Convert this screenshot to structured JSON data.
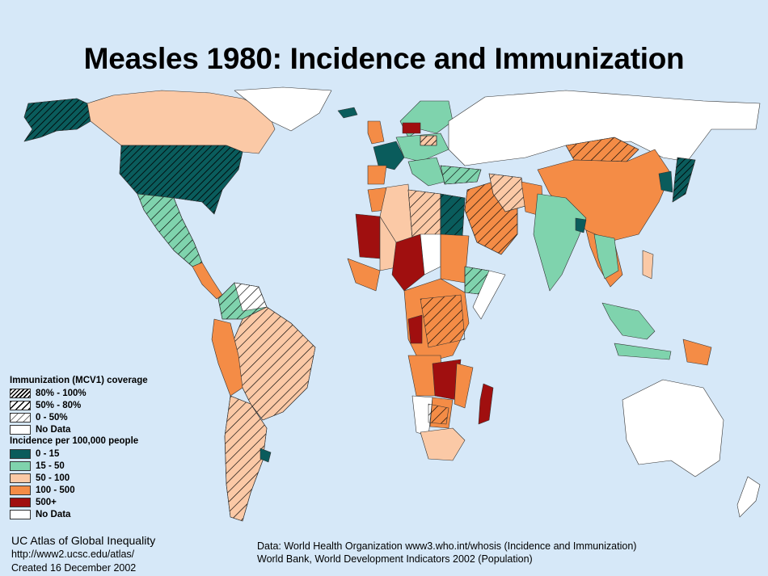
{
  "title": "Measles 1980: Incidence and Immunization",
  "colors": {
    "ocean": "#d6e8f8",
    "inc_0_15": "#0a5c5c",
    "inc_15_50": "#7fd3ad",
    "inc_50_100": "#fbc9a6",
    "inc_100_500": "#f48c46",
    "inc_500_plus": "#a00f0f",
    "no_data": "#ffffff"
  },
  "legend": {
    "immunization_title": "Immunization (MCV1) coverage",
    "immunization": [
      {
        "label": "80% - 100%",
        "pattern": "hatch-dense"
      },
      {
        "label": "50% - 80%",
        "pattern": "hatch-med"
      },
      {
        "label": "0 - 50%",
        "pattern": "hatch-light"
      },
      {
        "label": "No Data",
        "pattern": "none"
      }
    ],
    "incidence_title": "Incidence per 100,000 people",
    "incidence": [
      {
        "label": "0 - 15",
        "color": "#0a5c5c"
      },
      {
        "label": "15 - 50",
        "color": "#7fd3ad"
      },
      {
        "label": "50 - 100",
        "color": "#fbc9a6"
      },
      {
        "label": "100 - 500",
        "color": "#f48c46"
      },
      {
        "label": "500+",
        "color": "#a00f0f"
      },
      {
        "label": "No Data",
        "color": "#ffffff"
      }
    ]
  },
  "credits": {
    "org": "UC Atlas of Global Inequality",
    "url": "http://www2.ucsc.edu/atlas/",
    "created": "Created 16 December 2002"
  },
  "source": {
    "line1": "Data: World Health Organization www3.who.int/whosis (Incidence and Immunization)",
    "line2": "World Bank, World Development Indicators 2002 (Population)"
  }
}
